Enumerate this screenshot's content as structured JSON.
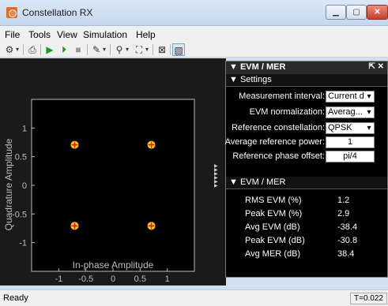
{
  "window": {
    "title": "Constellation RX"
  },
  "menu": [
    "File",
    "Tools",
    "View",
    "Simulation",
    "Help"
  ],
  "toolbar": {
    "icons": [
      "gear-icon",
      "chevron-down-icon",
      "print-icon",
      "run-icon",
      "step-forward-icon",
      "stop-icon",
      "highlight-icon",
      "zoom-in-icon",
      "fit-icon",
      "measure-icon",
      "panel-toggle-icon"
    ]
  },
  "panel": {
    "title": "▼ EVM / MER",
    "settings_header": "▼ Settings",
    "settings": [
      {
        "label": "Measurement interval:",
        "value": "Current di:",
        "dropdown": true
      },
      {
        "label": "EVM normalization:",
        "value": "Averag...",
        "dropdown": true
      },
      {
        "label": "Reference constellation:",
        "value": "QPSK",
        "dropdown": true
      },
      {
        "label": "Average reference power:",
        "value": "1",
        "dropdown": false
      },
      {
        "label": "Reference phase offset:",
        "value": "pi/4",
        "dropdown": false
      }
    ],
    "metrics_header": "▼ EVM / MER",
    "metrics": [
      {
        "label": "RMS EVM (%)",
        "value": "1.2"
      },
      {
        "label": "Peak EVM (%)",
        "value": "2.9"
      },
      {
        "label": "Avg EVM (dB)",
        "value": "-38.4"
      },
      {
        "label": "Peak EVM (dB)",
        "value": "-30.8"
      },
      {
        "label": "Avg MER (dB)",
        "value": "38.4"
      }
    ]
  },
  "status": {
    "text": "Ready",
    "time": "T=0.022"
  },
  "chart_data": {
    "type": "scatter",
    "xlabel": "In-phase Amplitude",
    "ylabel": "Quadrature Amplitude",
    "xlim": [
      -1.5,
      1.5
    ],
    "ylim": [
      -1.5,
      1.5
    ],
    "xticks": [
      "-1",
      "-0.5",
      "0",
      "0.5",
      "1"
    ],
    "yticks": [
      "1",
      "0.5",
      "0",
      "-0.5",
      "-1"
    ],
    "grid": false,
    "points": [
      {
        "x": -0.707,
        "y": 0.707
      },
      {
        "x": 0.707,
        "y": 0.707
      },
      {
        "x": -0.707,
        "y": -0.707
      },
      {
        "x": 0.707,
        "y": -0.707
      }
    ],
    "reference_color": "#ff0000",
    "point_color": "#ffd400"
  }
}
